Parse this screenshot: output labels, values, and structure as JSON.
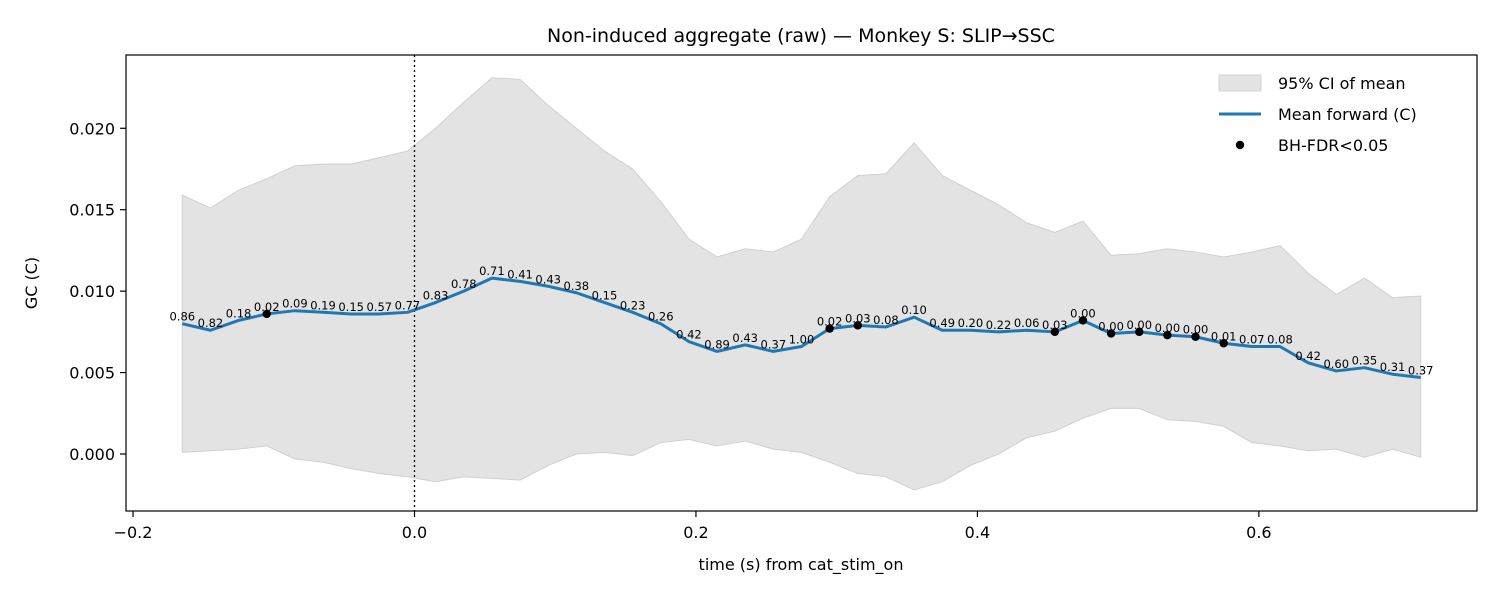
{
  "chart_data": {
    "type": "line",
    "title": "Non-induced aggregate (raw) — Monkey S: SLIP→SSC",
    "xlabel": "time (s) from cat_stim_on",
    "ylabel": "GC (C)",
    "xlim": [
      -0.205,
      0.755
    ],
    "ylim": [
      -0.0035,
      0.0245
    ],
    "xticks": [
      -0.2,
      0.0,
      0.2,
      0.4,
      0.6
    ],
    "xtick_labels": [
      "−0.2",
      "0.0",
      "0.2",
      "0.4",
      "0.6"
    ],
    "yticks": [
      0.0,
      0.005,
      0.01,
      0.015,
      0.02
    ],
    "ytick_labels": [
      "0.000",
      "0.005",
      "0.010",
      "0.015",
      "0.020"
    ],
    "vline_x": 0.0,
    "grid": false,
    "legend_position": "top-right",
    "legend": [
      {
        "label": "95% CI of mean",
        "kind": "band"
      },
      {
        "label": "Mean forward (C)",
        "kind": "line"
      },
      {
        "label": "BH-FDR<0.05",
        "kind": "dot"
      }
    ],
    "colors": {
      "line": "#1f77b4",
      "band": "#e3e3e3",
      "band_edge": "#d0d0d0",
      "dot": "#000000"
    },
    "x": [
      -0.165,
      -0.145,
      -0.125,
      -0.105,
      -0.085,
      -0.065,
      -0.045,
      -0.025,
      -0.005,
      0.015,
      0.035,
      0.055,
      0.075,
      0.095,
      0.115,
      0.135,
      0.155,
      0.175,
      0.195,
      0.215,
      0.235,
      0.255,
      0.275,
      0.295,
      0.315,
      0.335,
      0.355,
      0.375,
      0.395,
      0.415,
      0.435,
      0.455,
      0.475,
      0.495,
      0.515,
      0.535,
      0.555,
      0.575,
      0.595,
      0.615,
      0.635,
      0.655,
      0.675,
      0.695,
      0.715
    ],
    "series": [
      {
        "name": "Mean forward (C)",
        "values": [
          0.008,
          0.0076,
          0.0082,
          0.0086,
          0.0088,
          0.0087,
          0.0086,
          0.0086,
          0.0087,
          0.0093,
          0.01,
          0.0108,
          0.0106,
          0.0103,
          0.0099,
          0.0093,
          0.0087,
          0.008,
          0.0069,
          0.0063,
          0.0067,
          0.0063,
          0.0066,
          0.0077,
          0.0079,
          0.0078,
          0.0084,
          0.0076,
          0.0076,
          0.0075,
          0.0076,
          0.0075,
          0.0082,
          0.0074,
          0.0075,
          0.0073,
          0.0072,
          0.0068,
          0.0066,
          0.0066,
          0.0056,
          0.0051,
          0.0053,
          0.0049,
          0.0047
        ]
      }
    ],
    "ci_upper": [
      0.0159,
      0.0151,
      0.0162,
      0.0169,
      0.0177,
      0.0178,
      0.0178,
      0.0182,
      0.0186,
      0.02,
      0.0216,
      0.0231,
      0.023,
      0.0214,
      0.02,
      0.0186,
      0.0175,
      0.0155,
      0.0132,
      0.0121,
      0.0126,
      0.0124,
      0.0132,
      0.0158,
      0.0171,
      0.0172,
      0.0191,
      0.0171,
      0.0162,
      0.0153,
      0.0142,
      0.0136,
      0.0143,
      0.0122,
      0.0123,
      0.0126,
      0.0124,
      0.0121,
      0.0124,
      0.0128,
      0.0111,
      0.0098,
      0.0108,
      0.0096,
      0.0097
    ],
    "ci_lower": [
      0.0001,
      0.0002,
      0.0003,
      0.0005,
      -0.0003,
      -0.0005,
      -0.0009,
      -0.0012,
      -0.0014,
      -0.0017,
      -0.0014,
      -0.0015,
      -0.0016,
      -0.0007,
      0.0,
      0.0001,
      -0.0001,
      0.0007,
      0.0009,
      0.0005,
      0.0008,
      0.0003,
      0.0001,
      -0.0005,
      -0.0012,
      -0.0014,
      -0.0022,
      -0.0017,
      -0.0007,
      0.0,
      0.001,
      0.0014,
      0.0022,
      0.0028,
      0.0028,
      0.0021,
      0.002,
      0.0017,
      0.0007,
      0.0005,
      0.0002,
      0.0003,
      -0.0002,
      0.0003,
      -0.0002
    ],
    "p_value_labels": [
      "0.86",
      "0.82",
      "0.18",
      "0.02",
      "0.09",
      "0.19",
      "0.15",
      "0.57",
      "0.77",
      "0.83",
      "0.78",
      "0.71",
      "0.41",
      "0.43",
      "0.38",
      "0.15",
      "0.23",
      "0.26",
      "0.42",
      "0.89",
      "0.43",
      "0.37",
      "1.00",
      "0.02",
      "0.03",
      "0.08",
      "0.10",
      "0.49",
      "0.20",
      "0.22",
      "0.06",
      "0.03",
      "0.00",
      "0.00",
      "0.00",
      "0.00",
      "0.00",
      "0.01",
      "0.07",
      "0.08",
      "0.42",
      "0.60",
      "0.35",
      "0.31",
      "0.37"
    ],
    "significant_x": [
      -0.105,
      0.295,
      0.315,
      0.455,
      0.475,
      0.495,
      0.515,
      0.535,
      0.555,
      0.575
    ]
  }
}
